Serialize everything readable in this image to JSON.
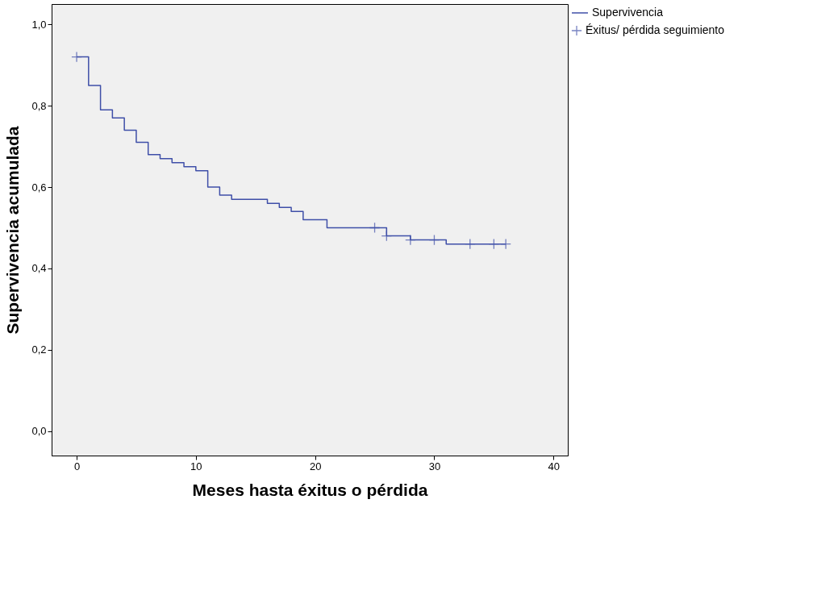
{
  "chart_data": {
    "type": "step",
    "xlabel": "Meses hasta éxitus o pérdida",
    "ylabel": "Supervivencia acumulada",
    "xlim": [
      -2.1,
      41.2
    ],
    "ylim": [
      -0.06,
      1.05
    ],
    "xticks": [
      0,
      10,
      20,
      30,
      40
    ],
    "yticks": [
      {
        "value": 0,
        "label": "0,0"
      },
      {
        "value": 0.2,
        "label": "0,2"
      },
      {
        "value": 0.4,
        "label": "0,4"
      },
      {
        "value": 0.6,
        "label": "0,6"
      },
      {
        "value": 0.8,
        "label": "0,8"
      },
      {
        "value": 1.0,
        "label": "1,0"
      }
    ],
    "grid": false,
    "legend": "top right",
    "series": [
      {
        "name": "Supervivencia",
        "color": "#3f4fa8",
        "marker": "none",
        "x": [
          0,
          1,
          2,
          3,
          4,
          5,
          6,
          7,
          8,
          9,
          10,
          11,
          12,
          13,
          16,
          17,
          18,
          19,
          21,
          26,
          28,
          31,
          36
        ],
        "values": [
          0.92,
          0.85,
          0.79,
          0.77,
          0.74,
          0.71,
          0.68,
          0.67,
          0.66,
          0.65,
          0.64,
          0.6,
          0.58,
          0.57,
          0.56,
          0.55,
          0.54,
          0.52,
          0.5,
          0.48,
          0.47,
          0.46,
          0.46
        ]
      },
      {
        "name": "Éxitus/ pérdida seguimiento",
        "type": "scatter",
        "color": "#3f4fa8",
        "marker": "cross",
        "x": [
          0,
          25,
          26,
          28,
          30,
          33,
          35,
          36
        ],
        "values": [
          0.92,
          0.5,
          0.48,
          0.47,
          0.47,
          0.46,
          0.46,
          0.46
        ]
      }
    ]
  }
}
